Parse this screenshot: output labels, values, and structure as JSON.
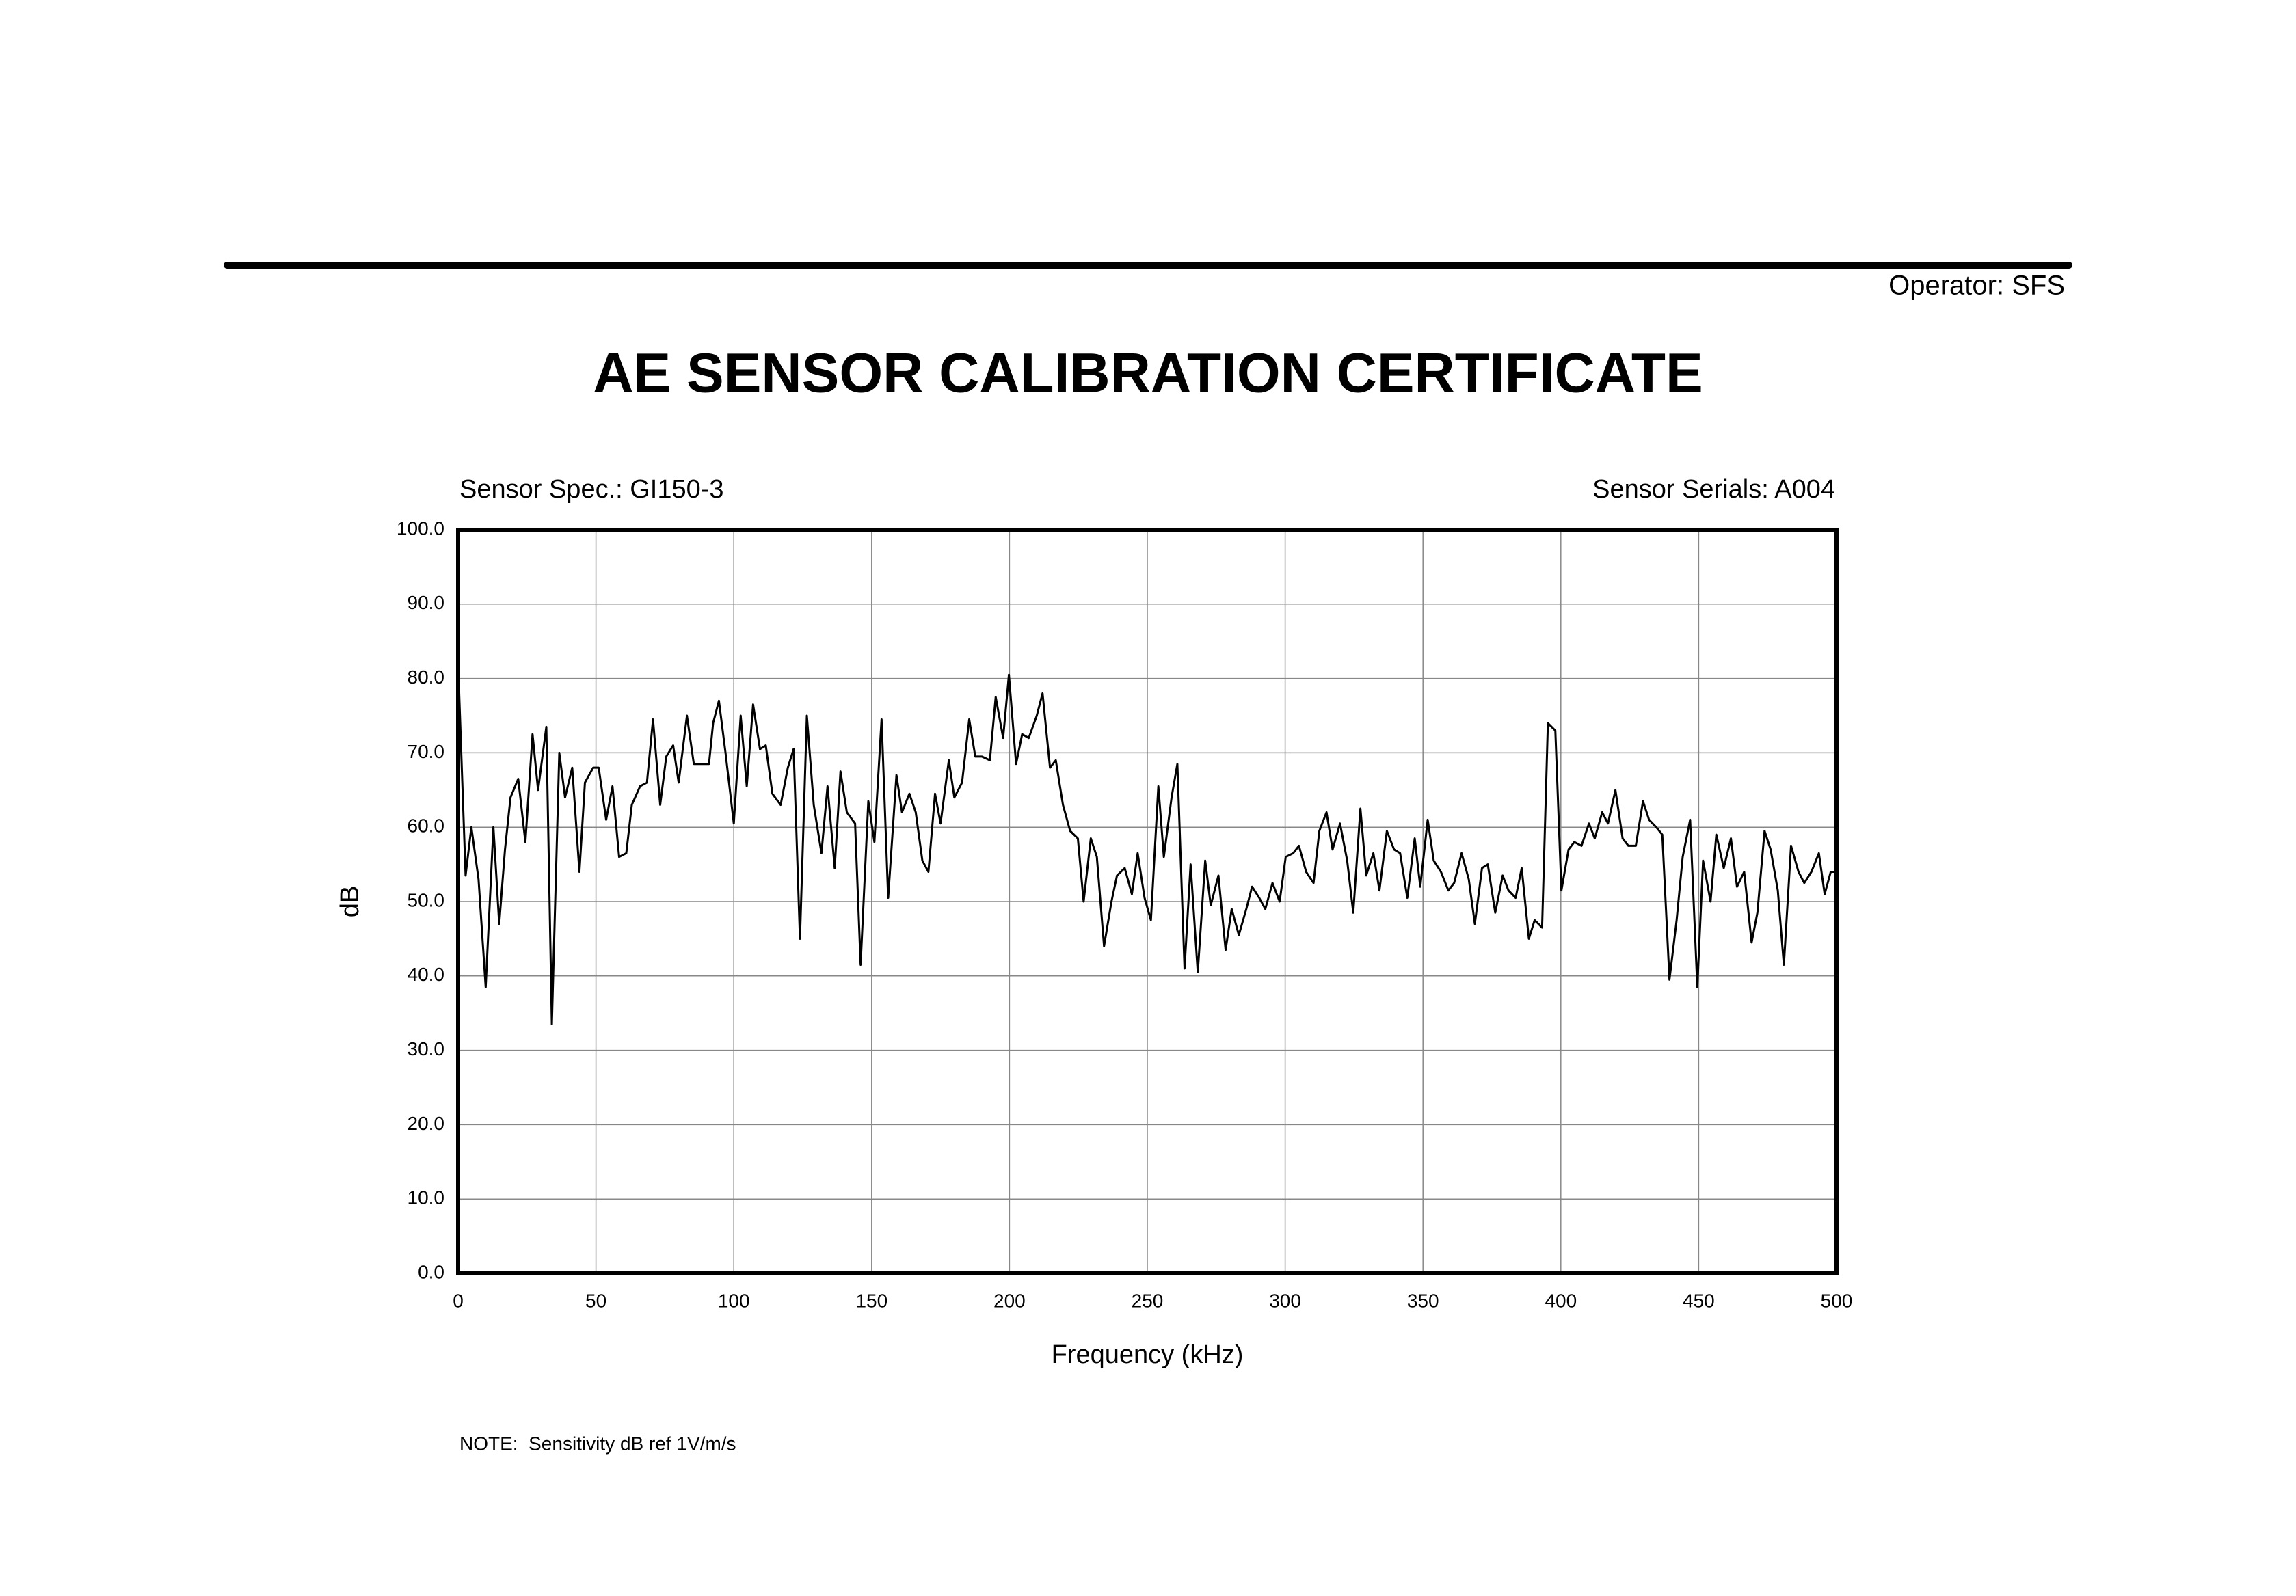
{
  "header": {
    "operator": "Operator: SFS"
  },
  "chart_data": {
    "type": "line",
    "title": "AE SENSOR CALIBRATION CERTIFICATE",
    "annotations": [
      "Sensor Spec.: GI150-3",
      "Sensor Serials: A004"
    ],
    "xlabel": "Frequency (kHz)",
    "ylabel": "dB",
    "x": [
      0,
      2.7,
      4.8,
      7.4,
      10,
      12.8,
      14.9,
      17,
      19,
      21.8,
      24.4,
      27,
      29,
      32,
      34,
      36.7,
      38.8,
      41.4,
      44,
      46,
      49,
      51,
      53.7,
      56,
      58.4,
      61,
      63,
      66,
      68.5,
      70.7,
      73.3,
      75.5,
      78,
      80,
      83,
      85.5,
      88,
      91,
      92.5,
      94.6,
      97,
      100,
      102.5,
      104.7,
      107,
      109.5,
      111.6,
      114,
      117,
      119.6,
      121.7,
      124,
      126.5,
      129,
      131.8,
      134,
      136.6,
      138.7,
      141,
      144,
      146,
      148.8,
      151,
      153.6,
      156,
      159,
      161,
      163.7,
      166,
      168.4,
      170.6,
      173,
      175,
      178,
      180,
      182.8,
      185.4,
      187.6,
      190,
      192.9,
      195,
      197.7,
      199.8,
      202.4,
      204.6,
      207,
      209.9,
      212,
      214.7,
      216.8,
      219.4,
      222,
      224.8,
      226.9,
      229.5,
      231.7,
      234.3,
      237,
      239,
      241.8,
      244.4,
      246.5,
      249,
      251.3,
      254,
      256,
      258.8,
      260.9,
      263.5,
      265.7,
      268.3,
      271,
      273,
      275.8,
      278.4,
      280.6,
      283.2,
      285.9,
      288,
      290.6,
      292.8,
      295.4,
      298,
      300.2,
      302.9,
      305,
      307.6,
      310.3,
      312.4,
      315,
      317.2,
      319.9,
      322.5,
      324.7,
      327.3,
      329.4,
      332,
      334.2,
      336.9,
      339.5,
      341.7,
      344.3,
      347,
      349,
      351.7,
      353.9,
      356.5,
      359.2,
      361.3,
      364,
      366.6,
      368.8,
      371.4,
      373.5,
      376.2,
      378.9,
      381,
      383.6,
      385.8,
      388.4,
      390.5,
      393.2,
      395.3,
      398,
      400.2,
      402.8,
      404.9,
      407.5,
      410.2,
      412.3,
      415,
      417.1,
      419.8,
      422.4,
      424.5,
      427.2,
      429.8,
      432,
      434.6,
      436.8,
      439.4,
      442,
      444.2,
      446.9,
      449.5,
      451.6,
      454.3,
      456.4,
      459.1,
      461.7,
      463.9,
      466.5,
      469.2,
      471.3,
      473.9,
      476.1,
      478.7,
      480.9,
      483.5,
      486.2,
      488.3,
      490.9,
      493.6,
      495.7,
      497.9,
      500
    ],
    "values": [
      82,
      53.5,
      60,
      53,
      38.5,
      60,
      47,
      57,
      64,
      66.5,
      58,
      72.5,
      65,
      73.5,
      33.5,
      70,
      64,
      68,
      54,
      66,
      68,
      68,
      61,
      65.5,
      56,
      56.5,
      63,
      65.5,
      66,
      74.5,
      63,
      69.5,
      71,
      66,
      75,
      68.5,
      68.5,
      68.5,
      74,
      77,
      70,
      60.5,
      75,
      65.5,
      76.5,
      70.5,
      71,
      64.5,
      63,
      68,
      70.5,
      45,
      75,
      63,
      56.5,
      65.5,
      54.5,
      67.5,
      62,
      60.5,
      41.5,
      63.5,
      58,
      74.5,
      50.5,
      67,
      62,
      64.5,
      62,
      55.5,
      54,
      64.5,
      60.5,
      69,
      64,
      66,
      74.5,
      69.5,
      69.5,
      69,
      77.5,
      72,
      80.5,
      68.5,
      72.5,
      72,
      75,
      78,
      68,
      69,
      63,
      59.5,
      58.5,
      50,
      58.5,
      56,
      44,
      50,
      53.5,
      54.5,
      51,
      56.5,
      50.5,
      47.5,
      65.5,
      56,
      64,
      68.5,
      41,
      55,
      40.5,
      55.5,
      49.5,
      53.5,
      43.5,
      49,
      45.5,
      49,
      52,
      50.5,
      49,
      52.5,
      50,
      56,
      56.5,
      57.5,
      54,
      52.5,
      59.5,
      62,
      57,
      60.5,
      55.5,
      48.5,
      62.5,
      53.5,
      56.5,
      51.5,
      59.5,
      57,
      56.5,
      50.5,
      58.5,
      52,
      61,
      55.5,
      54,
      51.5,
      52.5,
      56.5,
      53,
      47,
      54.5,
      55,
      48.5,
      53.5,
      51.5,
      50.5,
      54.5,
      45,
      47.5,
      46.5,
      74,
      73,
      51.5,
      57,
      58,
      57.5,
      60.5,
      58.5,
      62,
      60.5,
      65,
      58.5,
      57.5,
      57.5,
      63.5,
      61,
      60,
      59,
      39.5,
      47.5,
      56,
      61,
      38.5,
      55.5,
      50,
      59,
      54.5,
      58.5,
      52,
      54,
      44.5,
      48.5,
      59.5,
      57,
      51.5,
      41.5,
      57.5,
      54,
      52.5,
      54,
      56.5,
      51,
      54,
      54
    ],
    "color": "#000000",
    "xlim": [
      0,
      500
    ],
    "xticks": [
      0,
      50,
      100,
      150,
      200,
      250,
      300,
      350,
      400,
      450,
      500
    ],
    "ylim": [
      0,
      100
    ],
    "yticks": [
      {
        "value": 0,
        "label": "0.0"
      },
      {
        "value": 10,
        "label": "10.0"
      },
      {
        "value": 20,
        "label": "20.0"
      },
      {
        "value": 30,
        "label": "30.0"
      },
      {
        "value": 40,
        "label": "40.0"
      },
      {
        "value": 50,
        "label": "50.0"
      },
      {
        "value": 60,
        "label": "60.0"
      },
      {
        "value": 70,
        "label": "70.0"
      },
      {
        "value": 80,
        "label": "80.0"
      },
      {
        "value": 90,
        "label": "90.0"
      },
      {
        "value": 100,
        "label": "100.0"
      }
    ],
    "grid": true
  },
  "note": "NOTE:  Sensitivity dB ref 1V/m/s"
}
